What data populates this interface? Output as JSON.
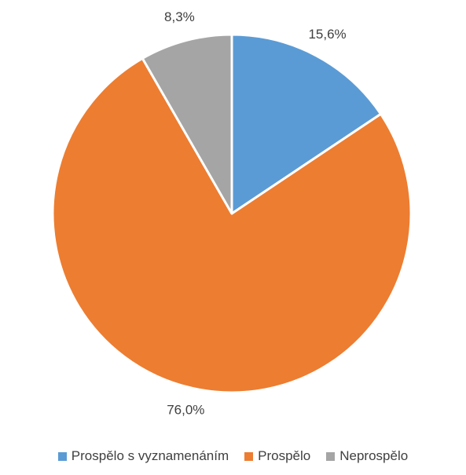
{
  "chart_data": {
    "type": "pie",
    "categories": [
      "Prospělo s vyznamenáním",
      "Prospělo",
      "Neprospělo"
    ],
    "values": [
      15.6,
      76.0,
      8.3
    ],
    "data_labels": [
      "15,6%",
      "76,0%",
      "8,3%"
    ],
    "colors": [
      "#5B9BD5",
      "#ED7D31",
      "#A5A5A5"
    ],
    "legend_position": "bottom"
  }
}
